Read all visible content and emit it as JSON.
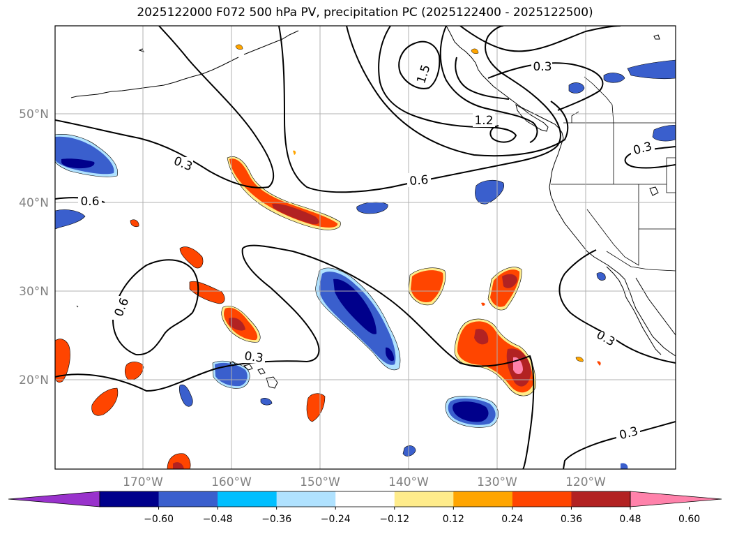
{
  "title": "2025122000 F072 500 hPa PV, precipitation PC (2025122400 - 2025122500)",
  "lat_ticks": [
    "50°N",
    "40°N",
    "30°N",
    "20°N"
  ],
  "lon_ticks": [
    "170°W",
    "160°W",
    "150°W",
    "140°W",
    "130°W",
    "120°W"
  ],
  "contour_labels": [
    "1.5",
    "0.3",
    "1.2",
    "0.3",
    "0.6",
    "0.3",
    "0.6",
    "0.6",
    "0.3",
    "0.3",
    "0.3"
  ],
  "colorbar": {
    "colors": [
      "#9932cc",
      "#00008b",
      "#3a5fcd",
      "#00bfff",
      "#b0e2ff",
      "#ffffff",
      "#ffec8b",
      "#ffa500",
      "#ff4500",
      "#b22222",
      "#ff82ab"
    ],
    "labels": [
      "−0.60",
      "−0.48",
      "−0.36",
      "−0.24",
      "−0.12",
      "0.12",
      "0.24",
      "0.36",
      "0.48",
      "0.60"
    ]
  }
}
